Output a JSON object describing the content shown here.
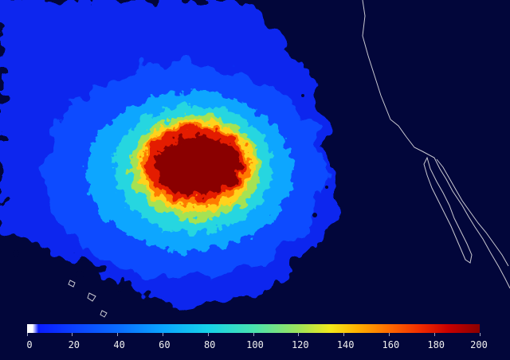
{
  "colorbar": {
    "min": 0,
    "max": 200,
    "tick_labels": [
      "0",
      "20",
      "40",
      "60",
      "80",
      "100",
      "120",
      "140",
      "160",
      "180",
      "200"
    ],
    "colors": {
      "low": "#ffffff",
      "mid_low": "#0a3cff",
      "mid": "#16d2e8",
      "mid_high": "#f2e81a",
      "high": "#8a0000"
    }
  },
  "map": {
    "background_color": "#02063a",
    "coastline_color": "#c8c8d0"
  }
}
